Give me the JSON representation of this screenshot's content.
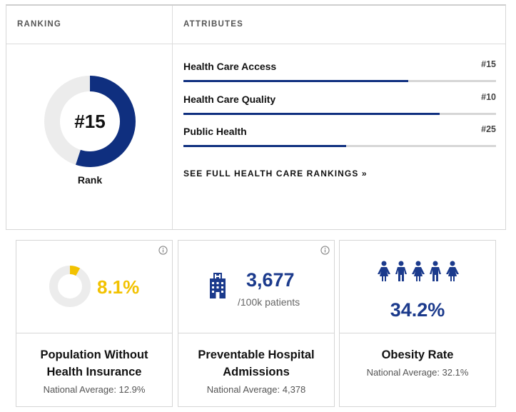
{
  "header": {
    "ranking_label": "RANKING",
    "attributes_label": "ATTRIBUTES"
  },
  "rank": {
    "value_label": "#15",
    "caption": "Rank",
    "donut_fill_fraction": 0.55
  },
  "attributes": [
    {
      "name": "Health Care Access",
      "rank": "#15",
      "bar_fraction": 0.72
    },
    {
      "name": "Health Care Quality",
      "rank": "#10",
      "bar_fraction": 0.82
    },
    {
      "name": "Public Health",
      "rank": "#25",
      "bar_fraction": 0.52
    }
  ],
  "link": {
    "label": "SEE FULL HEALTH CARE RANKINGS »"
  },
  "cards": [
    {
      "value": "8.1%",
      "title_line1": "Population Without",
      "title_line2": "Health Insurance",
      "average": "National Average: 12.9%",
      "donut_fraction": 0.081,
      "icon": "info-icon"
    },
    {
      "value": "3,677",
      "unit": "/100k patients",
      "title_line1": "Preventable Hospital",
      "title_line2": "Admissions",
      "average": "National Average: 4,378",
      "icon": "hospital-building-icon"
    },
    {
      "value": "34.2%",
      "title": "Obesity Rate",
      "average": "National Average: 32.1%",
      "icon": "people-icon"
    }
  ],
  "colors": {
    "brand_blue": "#0f2f7f",
    "accent_yellow": "#f2c200",
    "track_gray": "#ececec"
  }
}
